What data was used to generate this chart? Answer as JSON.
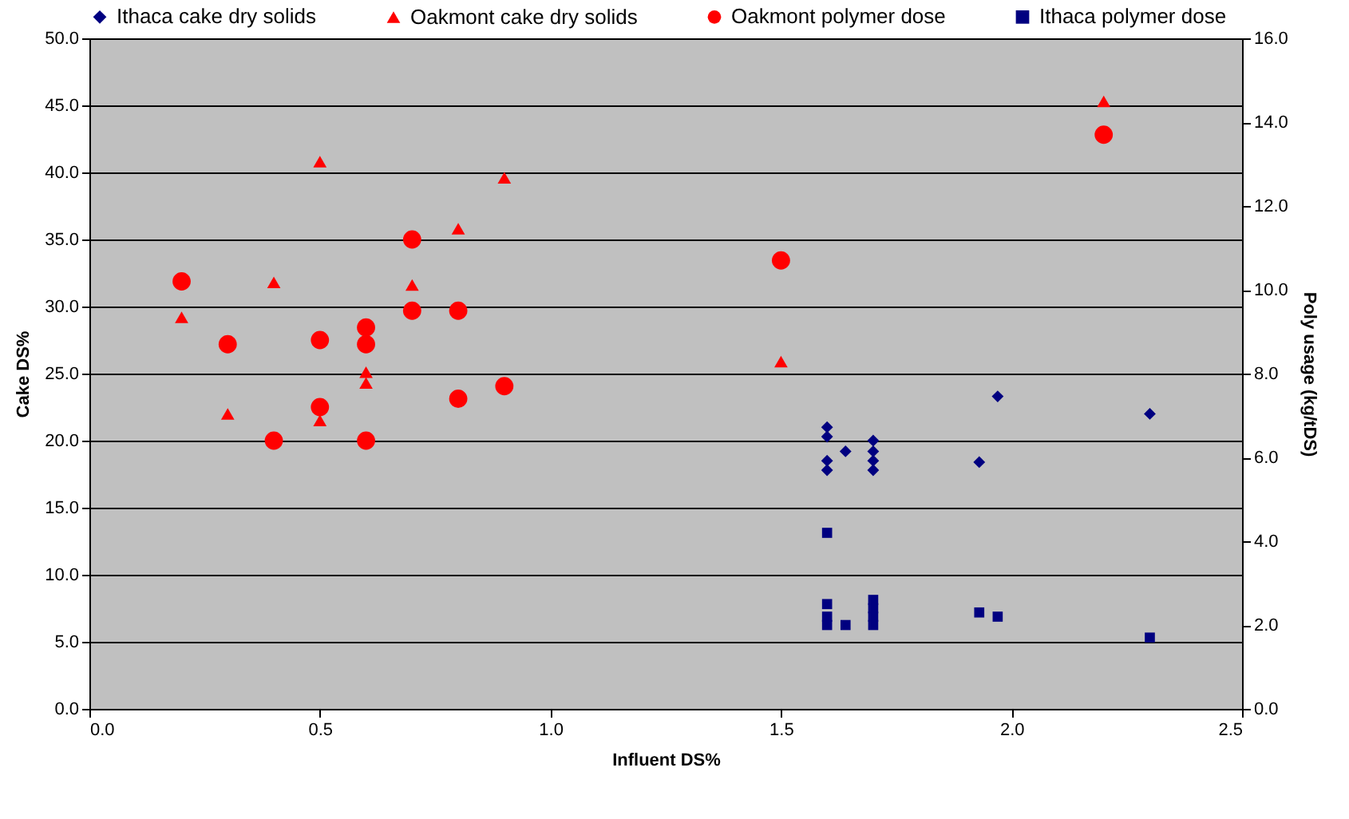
{
  "chart_data": {
    "type": "scatter",
    "xlabel": "Influent DS%",
    "ylabel": "Cake DS%",
    "y2label": "Poly usage (kg/tDS)",
    "xlim": [
      0,
      2.5
    ],
    "xticks": [
      {
        "value": 0,
        "label": "0.0"
      },
      {
        "value": 0.5,
        "label": "0.5"
      },
      {
        "value": 1,
        "label": "1.0"
      },
      {
        "value": 1.5,
        "label": "1.5"
      },
      {
        "value": 2,
        "label": "2.0"
      },
      {
        "value": 2.5,
        "label": "2.5"
      }
    ],
    "ylim": [
      0,
      50
    ],
    "yticks": [
      {
        "value": 0,
        "label": "0.0"
      },
      {
        "value": 5,
        "label": "5.0"
      },
      {
        "value": 10,
        "label": "10.0"
      },
      {
        "value": 15,
        "label": "15.0"
      },
      {
        "value": 20,
        "label": "20.0"
      },
      {
        "value": 25,
        "label": "25.0"
      },
      {
        "value": 30,
        "label": "30.0"
      },
      {
        "value": 35,
        "label": "35.0"
      },
      {
        "value": 40,
        "label": "40.0"
      },
      {
        "value": 45,
        "label": "45.0"
      },
      {
        "value": 50,
        "label": "50.0"
      }
    ],
    "y2lim": [
      0,
      16
    ],
    "y2ticks": [
      {
        "value": 0,
        "label": "0.0"
      },
      {
        "value": 2,
        "label": "2.0"
      },
      {
        "value": 4,
        "label": "4.0"
      },
      {
        "value": 6,
        "label": "6.0"
      },
      {
        "value": 8,
        "label": "8.0"
      },
      {
        "value": 10,
        "label": "10.0"
      },
      {
        "value": 12,
        "label": "12.0"
      },
      {
        "value": 14,
        "label": "14.0"
      },
      {
        "value": 16,
        "label": "16.0"
      }
    ],
    "grid": "y",
    "legend": "top",
    "series": [
      {
        "name": "Ithaca cake dry solids",
        "color": "#000080",
        "marker": "diamond",
        "x": [
          1.6,
          1.6,
          1.6,
          1.6,
          1.64,
          1.7,
          1.7,
          1.7,
          1.7,
          1.93,
          1.97,
          2.3
        ],
        "values": [
          21.0,
          20.3,
          18.5,
          17.8,
          19.2,
          20.0,
          19.2,
          18.5,
          17.8,
          18.4,
          23.3,
          22.0
        ]
      },
      {
        "name": "Oakmont cake dry solids",
        "color": "#ff0000",
        "marker": "triangle",
        "x": [
          0.2,
          0.3,
          0.4,
          0.5,
          0.5,
          0.6,
          0.6,
          0.7,
          0.8,
          0.9,
          1.5,
          2.2
        ],
        "values": [
          29.2,
          22.0,
          31.8,
          40.8,
          21.5,
          25.1,
          24.3,
          31.6,
          35.8,
          39.6,
          25.9,
          45.3
        ]
      },
      {
        "name": "Oakmont polymer dose",
        "color": "#ff0000",
        "marker": "circle",
        "axis": "y2",
        "x": [
          0.2,
          0.3,
          0.4,
          0.5,
          0.5,
          0.6,
          0.6,
          0.6,
          0.7,
          0.7,
          0.8,
          0.8,
          0.9,
          1.5,
          2.2
        ],
        "values": [
          10.2,
          8.7,
          6.4,
          8.8,
          7.2,
          9.1,
          8.7,
          6.4,
          11.2,
          9.5,
          9.5,
          7.4,
          7.7,
          10.7,
          13.7
        ]
      },
      {
        "name": "Ithaca polymer dose",
        "color": "#000080",
        "marker": "square",
        "axis": "y2",
        "x": [
          1.6,
          1.6,
          1.6,
          1.6,
          1.64,
          1.7,
          1.7,
          1.7,
          1.7,
          1.93,
          1.97,
          2.3
        ],
        "values": [
          4.2,
          2.5,
          2.2,
          2.0,
          2.0,
          2.6,
          2.4,
          2.2,
          2.0,
          2.3,
          2.2,
          1.7
        ]
      }
    ]
  }
}
